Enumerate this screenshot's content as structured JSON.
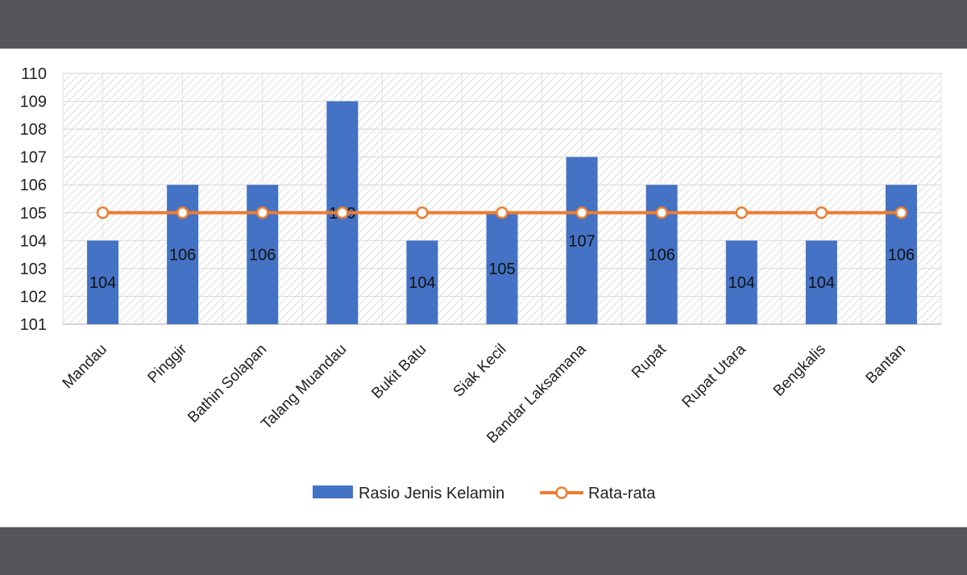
{
  "chart_data": {
    "type": "bar",
    "categories": [
      "Mandau",
      "Pinggir",
      "Bathin Solapan",
      "Talang Muandau",
      "Bukit Batu",
      "Siak Kecil",
      "Bandar Laksamana",
      "Rupat",
      "Rupat Utara",
      "Bengkalis",
      "Bantan"
    ],
    "series": [
      {
        "name": "Rasio Jenis Kelamin",
        "type": "bar",
        "color": "#4472c4",
        "values": [
          104,
          106,
          106,
          109,
          104,
          105,
          107,
          106,
          104,
          104,
          106
        ],
        "data_labels": [
          "104",
          "106",
          "106",
          "109",
          "104",
          "105",
          "107",
          "106",
          "104",
          "104",
          "106"
        ]
      },
      {
        "name": "Rata-rata",
        "type": "line",
        "color": "#ed7d31",
        "values": [
          105,
          105,
          105,
          105,
          105,
          105,
          105,
          105,
          105,
          105,
          105
        ]
      }
    ],
    "ylim": [
      101,
      110
    ],
    "yticks": [
      "101",
      "102",
      "103",
      "104",
      "105",
      "106",
      "107",
      "108",
      "109",
      "110"
    ],
    "grid": true,
    "legend_position": "bottom"
  }
}
